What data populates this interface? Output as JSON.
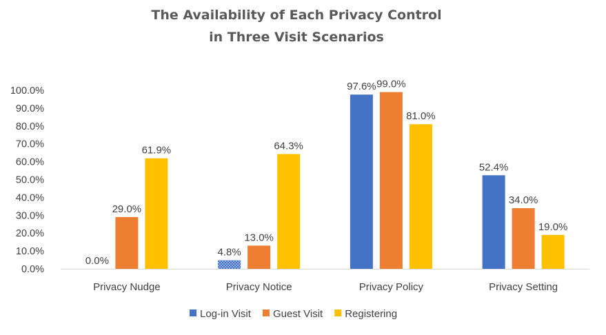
{
  "chart_data": {
    "type": "bar",
    "title_lines": [
      "The Availability of Each Privacy Control",
      "in Three Visit Scenarios"
    ],
    "categories": [
      "Privacy Nudge",
      "Privacy Notice",
      "Privacy Policy",
      "Privacy Setting"
    ],
    "series": [
      {
        "name": "Log-in Visit",
        "color": "#4472C4",
        "values": [
          0.0,
          4.8,
          97.6,
          52.4
        ],
        "labels": [
          "0.0%",
          "4.8%",
          "97.6%",
          "52.4%"
        ]
      },
      {
        "name": "Guest Visit",
        "color": "#ED7D31",
        "values": [
          29.0,
          13.0,
          99.0,
          34.0
        ],
        "labels": [
          "29.0%",
          "13.0%",
          "99.0%",
          "34.0%"
        ]
      },
      {
        "name": "Registering",
        "color": "#FFC000",
        "values": [
          61.9,
          64.3,
          81.0,
          19.0
        ],
        "labels": [
          "61.9%",
          "64.3%",
          "81.0%",
          "19.0%"
        ]
      }
    ],
    "ylim": [
      0,
      100
    ],
    "yticks": [
      "0.0%",
      "10.0%",
      "20.0%",
      "30.0%",
      "40.0%",
      "50.0%",
      "60.0%",
      "70.0%",
      "80.0%",
      "90.0%",
      "100.0%"
    ],
    "legend_position": "bottom",
    "grid": false
  }
}
